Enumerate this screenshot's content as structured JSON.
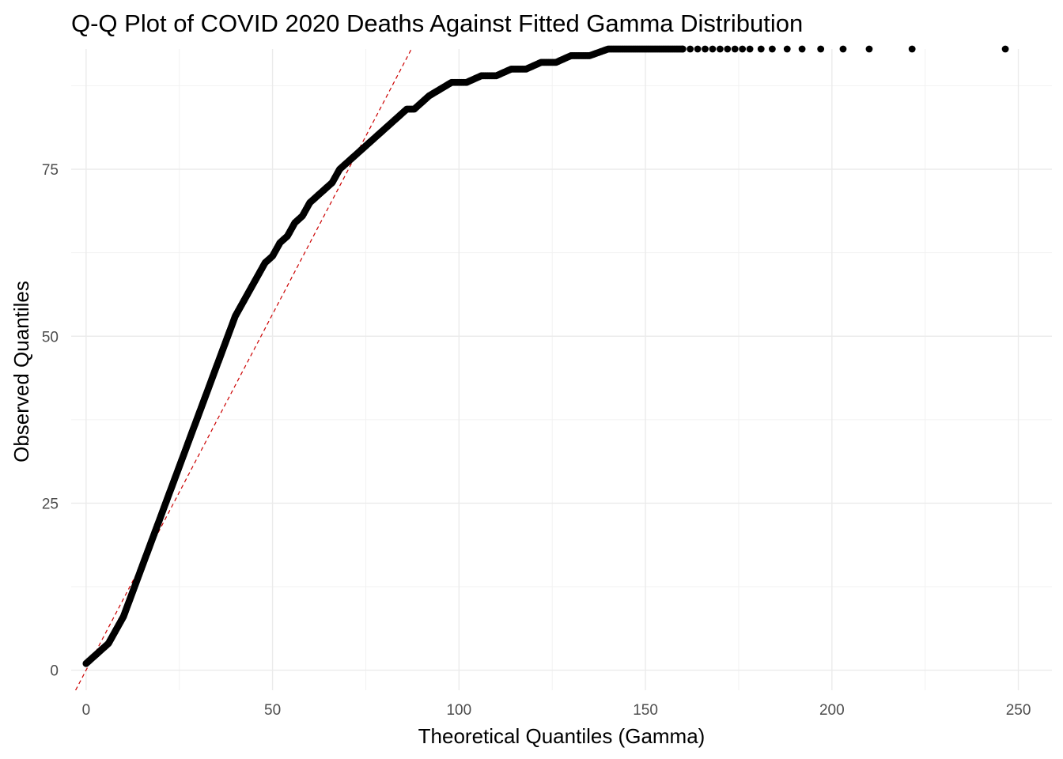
{
  "chart_data": {
    "type": "scatter",
    "title": "Q-Q Plot of COVID 2020 Deaths Against Fitted Gamma Distribution",
    "xlabel": "Theoretical Quantiles (Gamma)",
    "ylabel": "Observed Quantiles",
    "xlim": [
      -4,
      259
    ],
    "ylim": [
      -3,
      93
    ],
    "x_ticks": [
      0,
      50,
      100,
      150,
      200,
      250
    ],
    "y_ticks": [
      0,
      25,
      50,
      75
    ],
    "x_tick_labels": [
      "0",
      "50",
      "100",
      "150",
      "200",
      "250"
    ],
    "y_tick_labels": [
      "0",
      "25",
      "50",
      "75"
    ],
    "grid": true,
    "legend": "none",
    "point_color": "#000000",
    "reference_line": {
      "slope": 1.066,
      "intercept": 0,
      "color": "#cc0000",
      "style": "dashed"
    },
    "series": [
      {
        "quantile_curve": {
          "x": [
            0,
            2,
            4,
            6,
            8,
            10,
            12,
            14,
            16,
            18,
            20,
            22,
            24,
            26,
            28,
            30,
            32,
            34,
            36,
            38,
            40,
            42,
            44,
            46,
            48,
            50,
            52,
            54,
            56,
            58,
            60,
            62,
            64,
            66,
            68,
            70,
            72,
            74,
            76,
            78,
            80,
            82,
            84,
            86,
            88,
            90,
            92,
            95,
            98,
            102,
            106,
            110,
            114,
            118,
            122,
            126,
            130,
            135,
            140,
            150,
            160
          ],
          "y": [
            1,
            2,
            3,
            4,
            6,
            8,
            11,
            14,
            17,
            20,
            23,
            26,
            29,
            32,
            35,
            38,
            41,
            44,
            47,
            50,
            53,
            55,
            57,
            59,
            61,
            62,
            64,
            65,
            67,
            68,
            70,
            71,
            72,
            73,
            75,
            76,
            77,
            78,
            79,
            80,
            81,
            82,
            83,
            84,
            84,
            85,
            86,
            87,
            88,
            88,
            89,
            89,
            90,
            90,
            91,
            91,
            92,
            92,
            93,
            93,
            93
          ]
        }
      },
      {
        "name": "",
        "x": [
          160,
          162,
          164,
          166,
          168,
          170,
          172,
          174,
          176,
          178,
          181,
          184,
          188,
          192,
          197,
          203,
          210,
          221.5,
          246.5
        ],
        "y": [
          93,
          93,
          93,
          93,
          93,
          93,
          93,
          93,
          93,
          93,
          93,
          93,
          93,
          93,
          93,
          93,
          93,
          93,
          93
        ]
      }
    ]
  }
}
